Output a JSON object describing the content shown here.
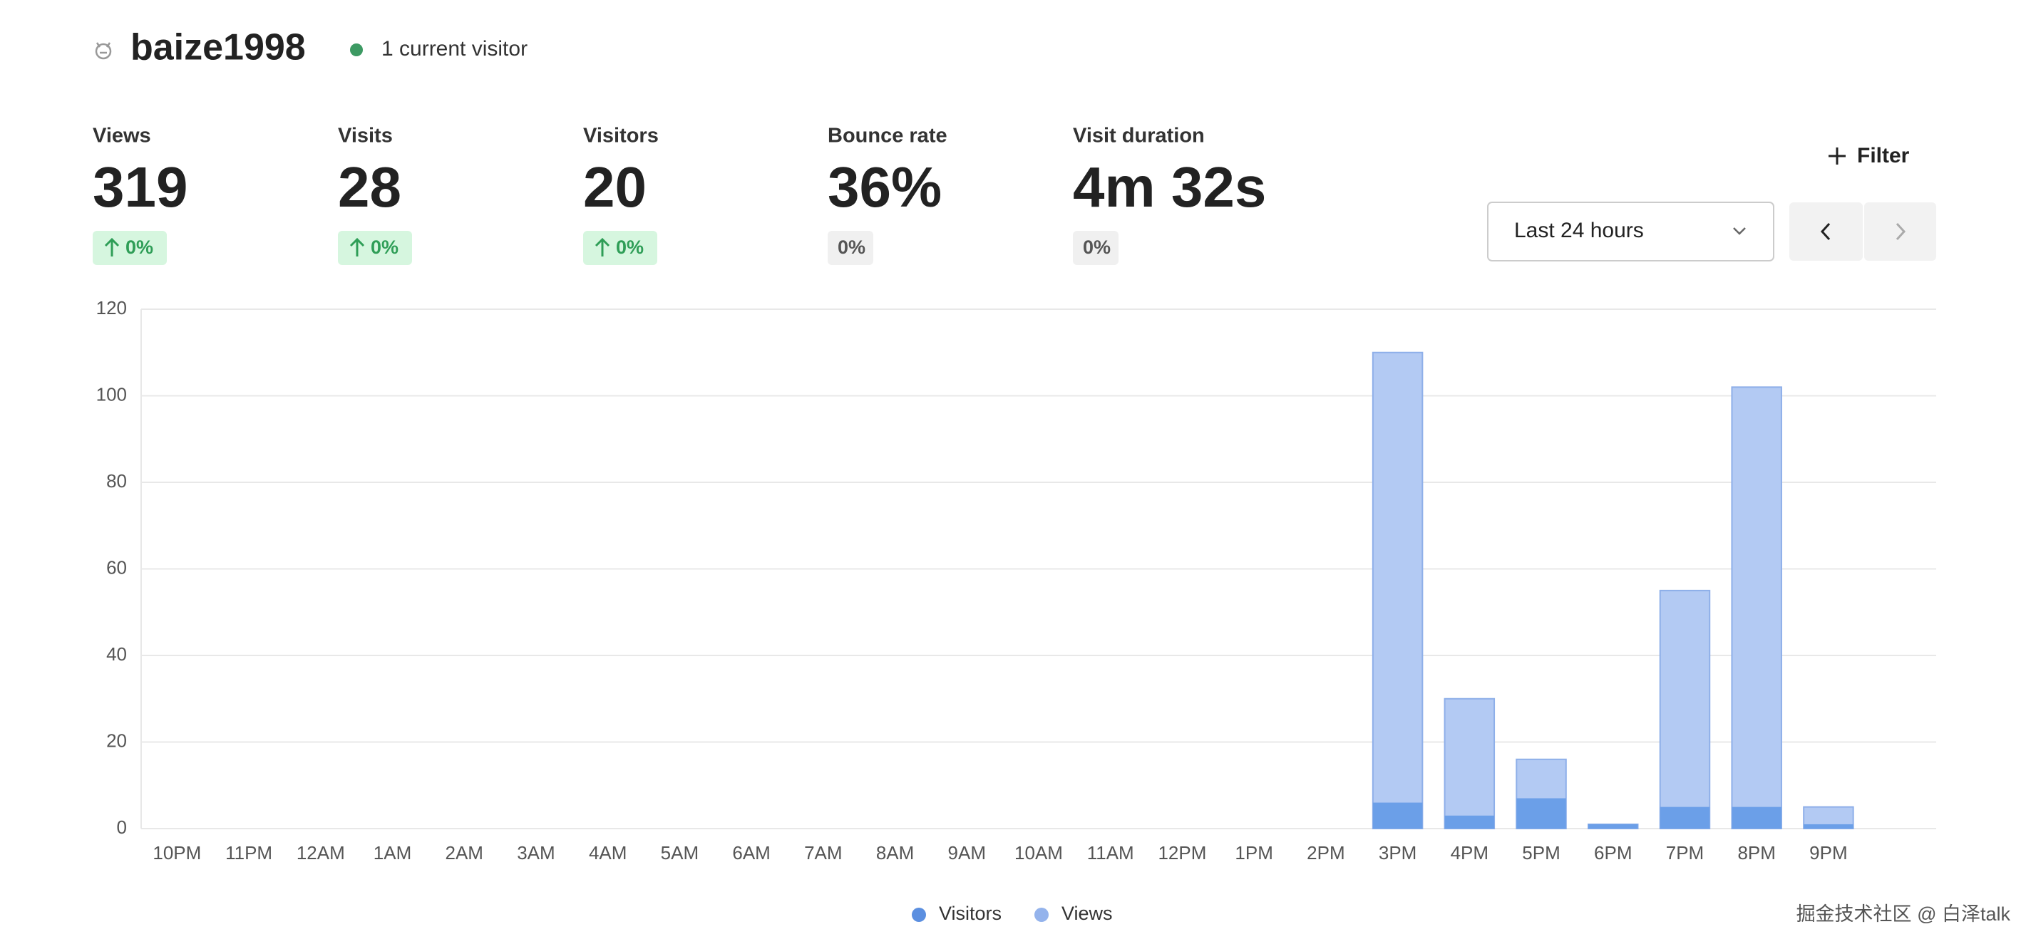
{
  "header": {
    "title": "baize1998",
    "status": "1 current visitor"
  },
  "metrics": [
    {
      "label": "Views",
      "value": "319",
      "change": "0%",
      "trend": "up"
    },
    {
      "label": "Visits",
      "value": "28",
      "change": "0%",
      "trend": "up"
    },
    {
      "label": "Visitors",
      "value": "20",
      "change": "0%",
      "trend": "up"
    },
    {
      "label": "Bounce rate",
      "value": "36%",
      "change": "0%",
      "trend": "flat"
    },
    {
      "label": "Visit duration",
      "value": "4m 32s",
      "change": "0%",
      "trend": "flat"
    }
  ],
  "controls": {
    "filter": "Filter",
    "range": "Last 24 hours"
  },
  "watermark": "掘金技术社区 @ 白泽talk",
  "chart_data": {
    "type": "bar",
    "categories": [
      "10PM",
      "11PM",
      "12AM",
      "1AM",
      "2AM",
      "3AM",
      "4AM",
      "5AM",
      "6AM",
      "7AM",
      "8AM",
      "9AM",
      "10AM",
      "11AM",
      "12PM",
      "1PM",
      "2PM",
      "3PM",
      "4PM",
      "5PM",
      "6PM",
      "7PM",
      "8PM",
      "9PM",
      null
    ],
    "series": [
      {
        "name": "Visitors",
        "color": "#6b9fe8",
        "values": [
          0,
          0,
          0,
          0,
          0,
          0,
          0,
          0,
          0,
          0,
          0,
          0,
          0,
          0,
          0,
          0,
          0,
          6,
          3,
          7,
          1,
          5,
          5,
          1,
          0
        ]
      },
      {
        "name": "Views",
        "color": "#b3caf3",
        "values": [
          0,
          0,
          0,
          0,
          0,
          0,
          0,
          0,
          0,
          0,
          0,
          0,
          0,
          0,
          0,
          0,
          0,
          110,
          30,
          16,
          1,
          55,
          102,
          5,
          0
        ]
      }
    ],
    "ylim": [
      0,
      120
    ],
    "yticks": [
      0,
      20,
      40,
      60,
      80,
      100,
      120
    ],
    "grid": true,
    "legend": "bottom"
  }
}
